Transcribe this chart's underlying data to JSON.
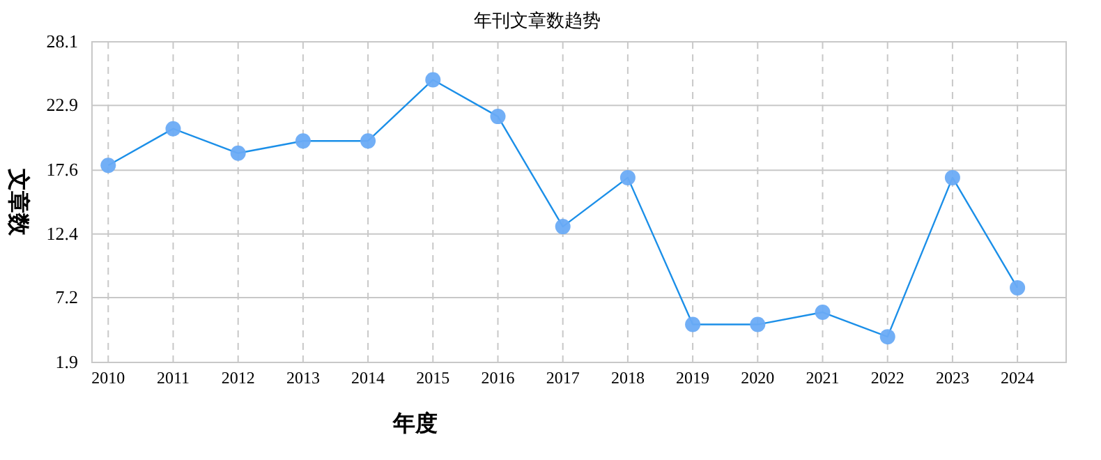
{
  "chart_data": {
    "type": "line",
    "title": "年刊文章数趋势",
    "xlabel": "年度",
    "ylabel": "文章数",
    "categories": [
      "2010",
      "2011",
      "2012",
      "2013",
      "2014",
      "2015",
      "2016",
      "2017",
      "2018",
      "2019",
      "2020",
      "2021",
      "2022",
      "2023",
      "2024"
    ],
    "series": [
      {
        "color": "#1b8fe8",
        "values": [
          18,
          21,
          19,
          20,
          20,
          25,
          22,
          13,
          17,
          5,
          5,
          6,
          4,
          17,
          8
        ]
      }
    ],
    "ylim": [
      1.9,
      28.1
    ],
    "yticks": [
      1.9,
      7.2,
      12.4,
      17.6,
      22.9,
      28.1
    ],
    "grid": true,
    "marker": "circle",
    "line_style": "solid"
  }
}
